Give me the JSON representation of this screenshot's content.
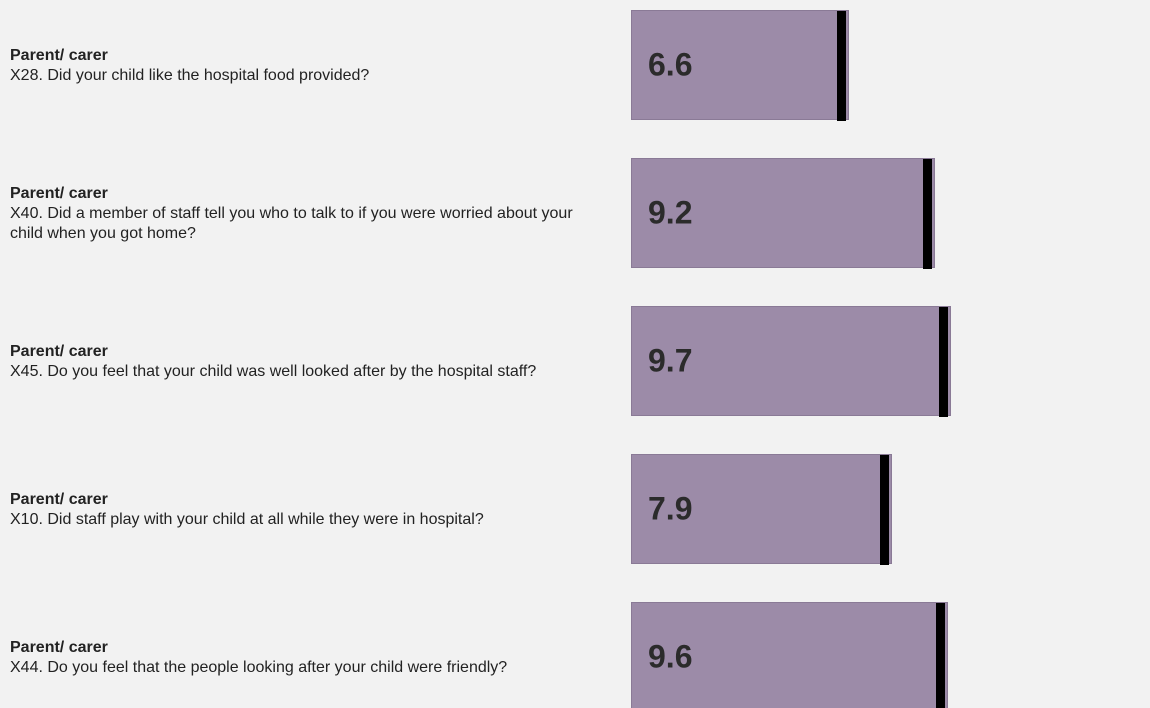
{
  "chart_data": {
    "type": "bar",
    "orientation": "horizontal",
    "xlim": [
      0,
      10
    ],
    "rows": [
      {
        "group": "Parent/ carer",
        "question": "X28. Did your child like the hospital food provided?",
        "value": 6.6,
        "value_label": "6.6"
      },
      {
        "group": "Parent/ carer",
        "question": "X40. Did a member of staff tell you who to talk to if you were worried about your child when you got home?",
        "value": 9.2,
        "value_label": "9.2"
      },
      {
        "group": "Parent/ carer",
        "question": "X45. Do you feel that your child was well looked after by the hospital staff?",
        "value": 9.7,
        "value_label": "9.7"
      },
      {
        "group": "Parent/ carer",
        "question": "X10. Did staff play with your child at all while they were in hospital?",
        "value": 7.9,
        "value_label": "7.9"
      },
      {
        "group": "Parent/ carer",
        "question": "X44. Do you feel that the people looking after your child were friendly?",
        "value": 9.6,
        "value_label": "9.6"
      }
    ],
    "colors": {
      "bar": "#9c8ba8",
      "marker": "#000000",
      "background": "#f2f2f2"
    }
  }
}
